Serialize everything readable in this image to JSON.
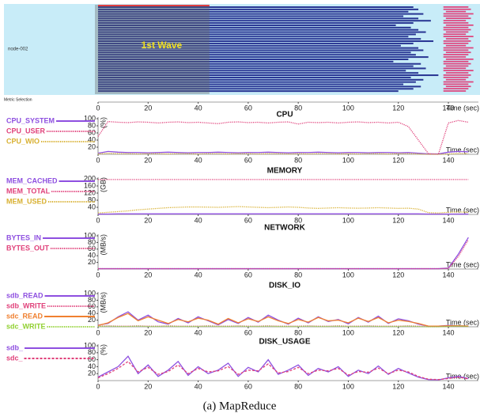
{
  "metric_selection": "Metric Selection",
  "caption": "(a) MapReduce",
  "chart_data": [
    {
      "type": "gantt",
      "label": "node-002",
      "annotation": "1st Wave",
      "xlim": [
        0,
        152
      ],
      "xticks": [
        0,
        20,
        40,
        60,
        80,
        100,
        120,
        140
      ],
      "xlabel": "Time (sec)",
      "highlight": [
        0,
        44.5
      ],
      "map_color": "#283593",
      "reduce_color": "#e0407a",
      "background": "#c8ecf8",
      "tasks": [
        [
          0,
          126
        ],
        [
          0,
          128
        ],
        [
          0,
          124
        ],
        [
          0,
          130
        ],
        [
          0,
          122
        ],
        [
          0,
          128
        ],
        [
          0,
          133
        ],
        [
          0,
          126
        ],
        [
          0,
          119
        ],
        [
          0,
          125
        ],
        [
          0,
          128
        ],
        [
          0,
          131
        ],
        [
          0,
          127
        ],
        [
          0,
          124
        ],
        [
          0,
          129
        ],
        [
          0,
          134
        ],
        [
          0,
          126
        ],
        [
          0,
          121
        ],
        [
          0,
          128
        ],
        [
          0,
          130
        ],
        [
          0,
          125
        ],
        [
          0,
          127
        ],
        [
          0,
          132
        ],
        [
          0,
          124
        ],
        [
          0,
          118
        ],
        [
          0,
          129
        ],
        [
          0,
          126
        ],
        [
          0,
          131
        ],
        [
          0,
          123
        ],
        [
          0,
          128
        ],
        [
          0,
          136
        ],
        [
          0,
          125
        ],
        [
          0,
          130
        ],
        [
          0,
          127
        ],
        [
          0,
          122
        ],
        [
          0,
          129
        ],
        [
          0,
          126
        ],
        [
          0,
          120
        ]
      ],
      "reduce_tasks": [
        [
          138,
          148
        ],
        [
          138,
          149
        ],
        [
          139,
          147
        ],
        [
          138,
          150
        ],
        [
          138,
          148
        ],
        [
          139,
          149
        ],
        [
          138,
          147
        ],
        [
          138,
          148
        ],
        [
          139,
          150
        ],
        [
          138,
          148
        ],
        [
          138,
          149
        ],
        [
          139,
          148
        ],
        [
          138,
          147
        ],
        [
          138,
          150
        ],
        [
          139,
          148
        ],
        [
          138,
          149
        ],
        [
          138,
          148
        ],
        [
          139,
          147
        ],
        [
          138,
          150
        ],
        [
          138,
          148
        ],
        [
          139,
          149
        ],
        [
          138,
          148
        ],
        [
          138,
          147
        ],
        [
          139,
          150
        ],
        [
          138,
          148
        ],
        [
          138,
          149
        ],
        [
          139,
          148
        ],
        [
          138,
          147
        ],
        [
          138,
          150
        ],
        [
          139,
          148
        ],
        [
          138,
          149
        ],
        [
          138,
          148
        ],
        [
          139,
          147
        ],
        [
          138,
          150
        ],
        [
          138,
          148
        ],
        [
          139,
          149
        ],
        [
          138,
          148
        ],
        [
          138,
          147
        ]
      ]
    },
    {
      "type": "line",
      "title": "CPU",
      "unit": "(%)",
      "xlabel": "Time (sec)",
      "xlim": [
        0,
        152
      ],
      "ylim": [
        0,
        100
      ],
      "xticks": [
        0,
        20,
        40,
        60,
        80,
        100,
        120,
        140
      ],
      "yticks": [
        20,
        40,
        60,
        80,
        100
      ],
      "x": [
        0,
        4,
        8,
        12,
        16,
        20,
        24,
        28,
        32,
        36,
        40,
        44,
        48,
        52,
        56,
        60,
        64,
        68,
        72,
        76,
        80,
        84,
        88,
        92,
        96,
        100,
        104,
        108,
        112,
        116,
        120,
        124,
        128,
        132,
        136,
        140,
        144,
        148
      ],
      "series": [
        {
          "name": "CPU_SYSTEM",
          "color": "#8e4fe0",
          "style": "solid",
          "values": [
            3,
            8,
            6,
            5,
            5,
            4,
            5,
            6,
            5,
            4,
            5,
            5,
            6,
            5,
            4,
            5,
            5,
            6,
            5,
            4,
            5,
            5,
            6,
            5,
            4,
            5,
            5,
            4,
            5,
            5,
            4,
            5,
            3,
            1,
            1,
            6,
            8,
            7
          ]
        },
        {
          "name": "CPU_USER",
          "color": "#e0407a",
          "style": "dotted",
          "values": [
            50,
            92,
            90,
            89,
            91,
            90,
            88,
            90,
            91,
            89,
            90,
            88,
            86,
            90,
            91,
            89,
            90,
            88,
            90,
            91,
            85,
            90,
            89,
            90,
            88,
            90,
            91,
            89,
            90,
            88,
            90,
            78,
            40,
            2,
            0,
            88,
            95,
            90
          ]
        },
        {
          "name": "CPU_WIO",
          "color": "#d8b030",
          "style": "dotted",
          "values": [
            1,
            3,
            2,
            2,
            1,
            2,
            2,
            1,
            2,
            2,
            1,
            2,
            2,
            1,
            2,
            2,
            1,
            2,
            2,
            1,
            2,
            1,
            2,
            2,
            1,
            2,
            1,
            2,
            2,
            1,
            2,
            2,
            1,
            0,
            0,
            1,
            2,
            2
          ]
        }
      ]
    },
    {
      "type": "line",
      "title": "MEMORY",
      "unit": "(GB)",
      "xlabel": "Time (sec)",
      "xlim": [
        0,
        152
      ],
      "ylim": [
        0,
        200
      ],
      "xticks": [
        0,
        20,
        40,
        60,
        80,
        100,
        120,
        140
      ],
      "yticks": [
        40,
        80,
        120,
        160,
        200
      ],
      "x": [
        0,
        4,
        8,
        12,
        16,
        20,
        24,
        28,
        32,
        36,
        40,
        44,
        48,
        52,
        56,
        60,
        64,
        68,
        72,
        76,
        80,
        84,
        88,
        92,
        96,
        100,
        104,
        108,
        112,
        116,
        120,
        124,
        128,
        132,
        136,
        140,
        144,
        148
      ],
      "series": [
        {
          "name": "MEM_CACHED",
          "color": "#8e4fe0",
          "style": "solid",
          "values": [
            2,
            2,
            3,
            3,
            3,
            3,
            3,
            3,
            3,
            3,
            3,
            3,
            3,
            3,
            3,
            3,
            3,
            3,
            3,
            3,
            3,
            3,
            3,
            3,
            3,
            3,
            3,
            3,
            3,
            3,
            3,
            3,
            3,
            2,
            2,
            2,
            2,
            2
          ]
        },
        {
          "name": "MEM_TOTAL",
          "color": "#e0407a",
          "style": "dotted",
          "values": [
            196,
            196,
            196,
            196,
            196,
            196,
            196,
            196,
            196,
            196,
            196,
            196,
            196,
            196,
            196,
            196,
            196,
            196,
            196,
            196,
            196,
            196,
            196,
            196,
            196,
            196,
            196,
            196,
            196,
            196,
            196,
            196,
            196,
            196,
            196,
            196,
            196,
            196
          ]
        },
        {
          "name": "MEM_USED",
          "color": "#d8b030",
          "style": "dotted",
          "values": [
            8,
            12,
            16,
            20,
            26,
            30,
            34,
            38,
            40,
            42,
            42,
            41,
            40,
            42,
            44,
            42,
            40,
            38,
            40,
            42,
            40,
            36,
            34,
            36,
            38,
            36,
            35,
            36,
            38,
            36,
            34,
            35,
            30,
            10,
            8,
            12,
            14,
            12
          ]
        }
      ]
    },
    {
      "type": "line",
      "title": "NETWORK",
      "unit": "(MB/s)",
      "xlabel": "Time (sec)",
      "xlim": [
        0,
        152
      ],
      "ylim": [
        0,
        100
      ],
      "xticks": [
        0,
        20,
        40,
        60,
        80,
        100,
        120,
        140
      ],
      "yticks": [
        20,
        40,
        60,
        80,
        100
      ],
      "x": [
        0,
        4,
        8,
        12,
        16,
        20,
        24,
        28,
        32,
        36,
        40,
        44,
        48,
        52,
        56,
        60,
        64,
        68,
        72,
        76,
        80,
        84,
        88,
        92,
        96,
        100,
        104,
        108,
        112,
        116,
        120,
        124,
        128,
        132,
        136,
        140,
        144,
        148
      ],
      "series": [
        {
          "name": "BYTES_IN",
          "color": "#8e4fe0",
          "style": "solid",
          "values": [
            1,
            1,
            1,
            1,
            1,
            1,
            1,
            1,
            1,
            1,
            1,
            1,
            1,
            1,
            1,
            1,
            1,
            1,
            1,
            1,
            1,
            1,
            1,
            1,
            1,
            1,
            1,
            1,
            1,
            1,
            1,
            1,
            1,
            1,
            1,
            3,
            45,
            95
          ]
        },
        {
          "name": "BYTES_OUT",
          "color": "#e0407a",
          "style": "dotted",
          "values": [
            1,
            1,
            1,
            1,
            1,
            1,
            1,
            1,
            1,
            1,
            1,
            1,
            1,
            1,
            1,
            1,
            1,
            1,
            1,
            1,
            1,
            1,
            1,
            1,
            1,
            1,
            1,
            1,
            1,
            1,
            1,
            1,
            1,
            1,
            1,
            2,
            38,
            88
          ]
        }
      ]
    },
    {
      "type": "line",
      "title": "DISK_IO",
      "unit": "(MB/s)",
      "xlabel": "Time (sec)",
      "xlim": [
        0,
        152
      ],
      "ylim": [
        0,
        100
      ],
      "xticks": [
        0,
        20,
        40,
        60,
        80,
        100,
        120,
        140
      ],
      "yticks": [
        20,
        40,
        60,
        80,
        100
      ],
      "x": [
        0,
        4,
        8,
        12,
        16,
        20,
        24,
        28,
        32,
        36,
        40,
        44,
        48,
        52,
        56,
        60,
        64,
        68,
        72,
        76,
        80,
        84,
        88,
        92,
        96,
        100,
        104,
        108,
        112,
        116,
        120,
        124,
        128,
        132,
        136,
        140,
        144,
        148
      ],
      "series": [
        {
          "name": "sdb_READ",
          "color": "#8e4fe0",
          "style": "solid",
          "values": [
            5,
            10,
            30,
            45,
            20,
            35,
            15,
            8,
            25,
            12,
            30,
            18,
            6,
            22,
            10,
            28,
            14,
            35,
            20,
            8,
            26,
            12,
            30,
            16,
            22,
            9,
            28,
            14,
            32,
            10,
            24,
            18,
            8,
            2,
            2,
            4,
            3,
            2
          ]
        },
        {
          "name": "sdb_WRITE",
          "color": "#e0407a",
          "style": "dotted",
          "values": [
            2,
            3,
            2,
            2,
            3,
            2,
            2,
            3,
            2,
            2,
            2,
            3,
            2,
            2,
            3,
            2,
            2,
            3,
            2,
            2,
            2,
            3,
            2,
            2,
            3,
            2,
            2,
            3,
            2,
            2,
            2,
            3,
            2,
            1,
            1,
            2,
            3,
            2
          ]
        },
        {
          "name": "sdc_READ",
          "color": "#f08030",
          "style": "solid",
          "values": [
            4,
            12,
            28,
            40,
            18,
            30,
            20,
            10,
            22,
            15,
            26,
            20,
            8,
            25,
            12,
            24,
            16,
            30,
            18,
            10,
            22,
            14,
            28,
            18,
            20,
            12,
            26,
            16,
            28,
            12,
            20,
            16,
            10,
            2,
            2,
            3,
            3,
            2
          ]
        },
        {
          "name": "sdc_WRITE",
          "color": "#90d030",
          "style": "dotted",
          "values": [
            1,
            2,
            1,
            1,
            2,
            1,
            1,
            2,
            1,
            1,
            1,
            2,
            1,
            1,
            2,
            1,
            1,
            2,
            1,
            1,
            1,
            2,
            1,
            1,
            2,
            1,
            1,
            2,
            1,
            1,
            1,
            2,
            1,
            0,
            0,
            1,
            2,
            1
          ]
        }
      ]
    },
    {
      "type": "line",
      "title": "DISK_USAGE",
      "unit": "(%)",
      "xlabel": "Time (sec)",
      "xlim": [
        0,
        152
      ],
      "ylim": [
        0,
        100
      ],
      "xticks": [
        0,
        20,
        40,
        60,
        80,
        100,
        120,
        140
      ],
      "yticks": [
        20,
        40,
        60,
        80,
        100
      ],
      "x": [
        0,
        4,
        8,
        12,
        16,
        20,
        24,
        28,
        32,
        36,
        40,
        44,
        48,
        52,
        56,
        60,
        64,
        68,
        72,
        76,
        80,
        84,
        88,
        92,
        96,
        100,
        104,
        108,
        112,
        116,
        120,
        124,
        128,
        132,
        136,
        140,
        144,
        148
      ],
      "series": [
        {
          "name": "sdb_",
          "color": "#8e4fe0",
          "style": "solid",
          "values": [
            10,
            25,
            40,
            70,
            20,
            45,
            12,
            30,
            55,
            15,
            40,
            20,
            30,
            50,
            12,
            38,
            25,
            60,
            18,
            30,
            45,
            15,
            35,
            25,
            40,
            12,
            30,
            20,
            42,
            18,
            35,
            22,
            10,
            3,
            2,
            8,
            12,
            6
          ]
        },
        {
          "name": "sdc_",
          "color": "#e0407a",
          "style": "dashed",
          "values": [
            8,
            20,
            35,
            55,
            25,
            38,
            18,
            26,
            45,
            20,
            35,
            25,
            28,
            40,
            18,
            30,
            28,
            48,
            22,
            26,
            38,
            20,
            30,
            28,
            35,
            16,
            26,
            24,
            36,
            20,
            30,
            25,
            12,
            4,
            3,
            6,
            10,
            5
          ]
        }
      ]
    }
  ]
}
